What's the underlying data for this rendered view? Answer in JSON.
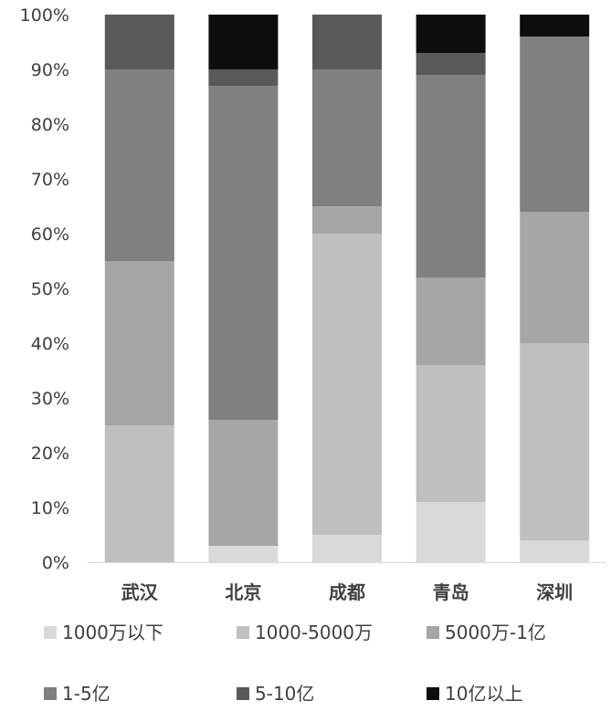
{
  "chart_data": {
    "type": "bar",
    "stacked": true,
    "categories": [
      "武汉",
      "北京",
      "成都",
      "青岛",
      "深圳"
    ],
    "series": [
      {
        "name": "1000万以下",
        "values": [
          0,
          3,
          5,
          11,
          4
        ],
        "color": "#d9d9d9"
      },
      {
        "name": "1000-5000万",
        "values": [
          25,
          0,
          55,
          25,
          36
        ],
        "color": "#bfbfbf"
      },
      {
        "name": "5000万-1亿",
        "values": [
          30,
          23,
          5,
          16,
          24
        ],
        "color": "#a6a6a6"
      },
      {
        "name": "1-5亿",
        "values": [
          35,
          61,
          25,
          37,
          32
        ],
        "color": "#808080"
      },
      {
        "name": "5-10亿",
        "values": [
          10,
          3,
          10,
          4,
          0
        ],
        "color": "#595959"
      },
      {
        "name": "10亿以上",
        "values": [
          0,
          10,
          0,
          7,
          4
        ],
        "color": "#0d0d0d"
      }
    ],
    "y_ticks": [
      "0%",
      "10%",
      "20%",
      "30%",
      "40%",
      "50%",
      "60%",
      "70%",
      "80%",
      "90%",
      "100%"
    ],
    "ylim": [
      0,
      100
    ],
    "grid": false,
    "legend_position": "bottom"
  }
}
